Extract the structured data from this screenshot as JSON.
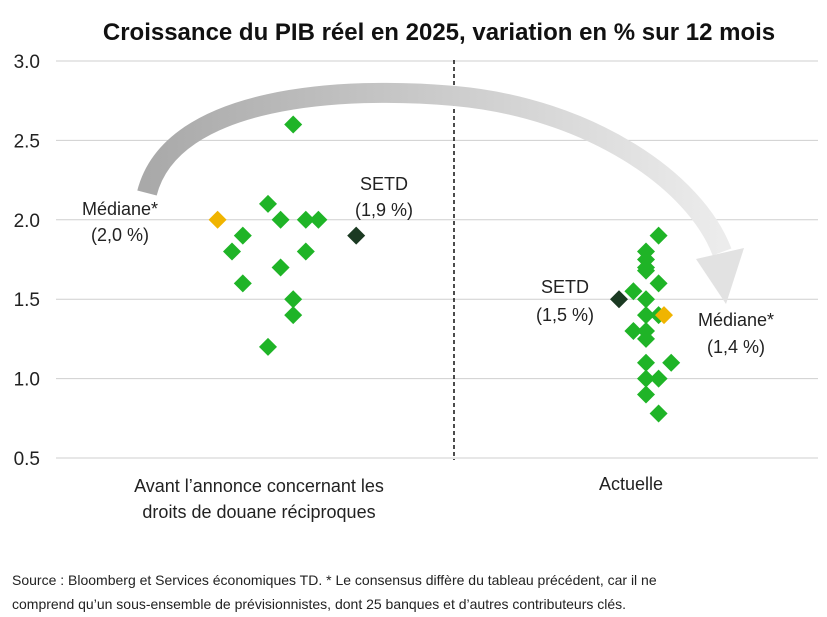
{
  "chart_data": {
    "type": "scatter",
    "title": "Croissance du PIB réel en 2025, variation en % sur 12 mois",
    "ylim": [
      0.5,
      3.0
    ],
    "yticks": [
      "3.0",
      "2.5",
      "2.0",
      "1.5",
      "1.0",
      "0.5"
    ],
    "grid": true,
    "categories": [
      {
        "line1": "Avant l’annonce concernant les",
        "line2": "droits de douane réciproques"
      },
      {
        "line1": "Actuelle",
        "line2": ""
      }
    ],
    "colors": {
      "forecast": "#1fb427",
      "median": "#f0b400",
      "setd": "#1b3a22",
      "grid": "#cfcfcf",
      "arrow": "#b8b8b8"
    },
    "series": [
      {
        "category": 0,
        "forecasts": [
          {
            "offset": -1.0,
            "y": 1.8
          },
          {
            "offset": -0.7,
            "y": 1.9
          },
          {
            "offset": -0.7,
            "y": 1.6
          },
          {
            "offset": 0.0,
            "y": 2.1
          },
          {
            "offset": 0.0,
            "y": 1.2
          },
          {
            "offset": 0.35,
            "y": 2.0
          },
          {
            "offset": 0.35,
            "y": 1.7
          },
          {
            "offset": 0.7,
            "y": 2.6
          },
          {
            "offset": 0.7,
            "y": 1.5
          },
          {
            "offset": 0.7,
            "y": 1.4
          },
          {
            "offset": 1.05,
            "y": 2.0
          },
          {
            "offset": 1.05,
            "y": 1.8
          },
          {
            "offset": 1.4,
            "y": 2.0
          }
        ],
        "median": {
          "offset": -1.4,
          "y": 2.0,
          "label_line1": "Médiane*",
          "label_line2": "(2,0 %)"
        },
        "setd": {
          "offset": 2.45,
          "y": 1.9,
          "label_line1": "SETD",
          "label_line2": "(1,9 %)"
        }
      },
      {
        "category": 1,
        "forecasts": [
          {
            "offset": -0.35,
            "y": 1.55
          },
          {
            "offset": -0.35,
            "y": 1.3
          },
          {
            "offset": 0.0,
            "y": 1.8
          },
          {
            "offset": 0.0,
            "y": 1.75
          },
          {
            "offset": 0.0,
            "y": 1.7
          },
          {
            "offset": 0.0,
            "y": 1.68
          },
          {
            "offset": 0.0,
            "y": 1.5
          },
          {
            "offset": 0.0,
            "y": 1.4
          },
          {
            "offset": 0.0,
            "y": 1.3
          },
          {
            "offset": 0.0,
            "y": 1.25
          },
          {
            "offset": 0.0,
            "y": 1.1
          },
          {
            "offset": 0.0,
            "y": 1.0
          },
          {
            "offset": 0.0,
            "y": 0.9
          },
          {
            "offset": 0.35,
            "y": 1.9
          },
          {
            "offset": 0.35,
            "y": 1.6
          },
          {
            "offset": 0.35,
            "y": 1.4
          },
          {
            "offset": 0.35,
            "y": 1.0
          },
          {
            "offset": 0.35,
            "y": 0.78
          },
          {
            "offset": 0.7,
            "y": 1.1
          }
        ],
        "median": {
          "offset": 0.5,
          "y": 1.4,
          "label_line1": "Médiane*",
          "label_line2": "(1,4 %)"
        },
        "setd": {
          "offset": -0.75,
          "y": 1.5,
          "label_line1": "SETD",
          "label_line2": "(1,5 %)"
        }
      }
    ]
  },
  "source": {
    "line1": "Source : Bloomberg et Services économiques TD. * Le consensus diffère du tableau précédent, car il ne",
    "line2": "comprend qu’un sous-ensemble de prévisionnistes, dont 25 banques et d’autres contributeurs clés."
  }
}
